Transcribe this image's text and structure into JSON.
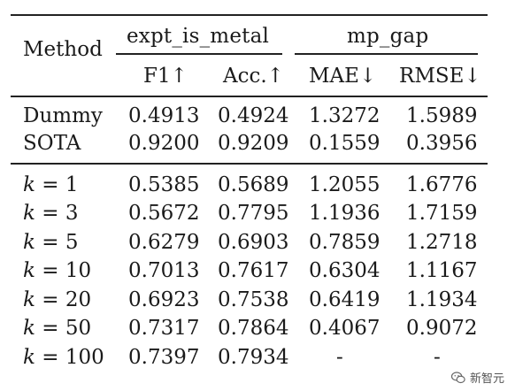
{
  "table": {
    "headers": {
      "method": "Method",
      "group1": "expt_is_metal",
      "group2": "mp_gap",
      "f1": "F1↑",
      "acc": "Acc.↑",
      "mae": "MAE↓",
      "rmse": "RMSE↓"
    },
    "baseline_rows": [
      {
        "method": "Dummy",
        "f1": "0.4913",
        "acc": "0.4924",
        "mae": "1.3272",
        "rmse": "1.5989"
      },
      {
        "method": "SOTA",
        "f1": "0.9200",
        "acc": "0.9209",
        "mae": "0.1559",
        "rmse": "0.3956"
      }
    ],
    "k_rows": [
      {
        "k": "k",
        "eq": " = 1",
        "f1": "0.5385",
        "acc": "0.5689",
        "mae": "1.2055",
        "rmse": "1.6776"
      },
      {
        "k": "k",
        "eq": " = 3",
        "f1": "0.5672",
        "acc": "0.7795",
        "mae": "1.1936",
        "rmse": "1.7159"
      },
      {
        "k": "k",
        "eq": " = 5",
        "f1": "0.6279",
        "acc": "0.6903",
        "mae": "0.7859",
        "rmse": "1.2718"
      },
      {
        "k": "k",
        "eq": " = 10",
        "f1": "0.7013",
        "acc": "0.7617",
        "mae": "0.6304",
        "rmse": "1.1167"
      },
      {
        "k": "k",
        "eq": " = 20",
        "f1": "0.6923",
        "acc": "0.7538",
        "mae": "0.6419",
        "rmse": "1.1934"
      },
      {
        "k": "k",
        "eq": " = 50",
        "f1": "0.7317",
        "acc": "0.7864",
        "mae": "0.4067",
        "rmse": "0.9072"
      },
      {
        "k": "k",
        "eq": " = 100",
        "f1": "0.7397",
        "acc": "0.7934",
        "mae": "-",
        "rmse": "-"
      }
    ]
  },
  "watermark": {
    "text": "新智元",
    "icon": "wechat-logo-icon"
  }
}
